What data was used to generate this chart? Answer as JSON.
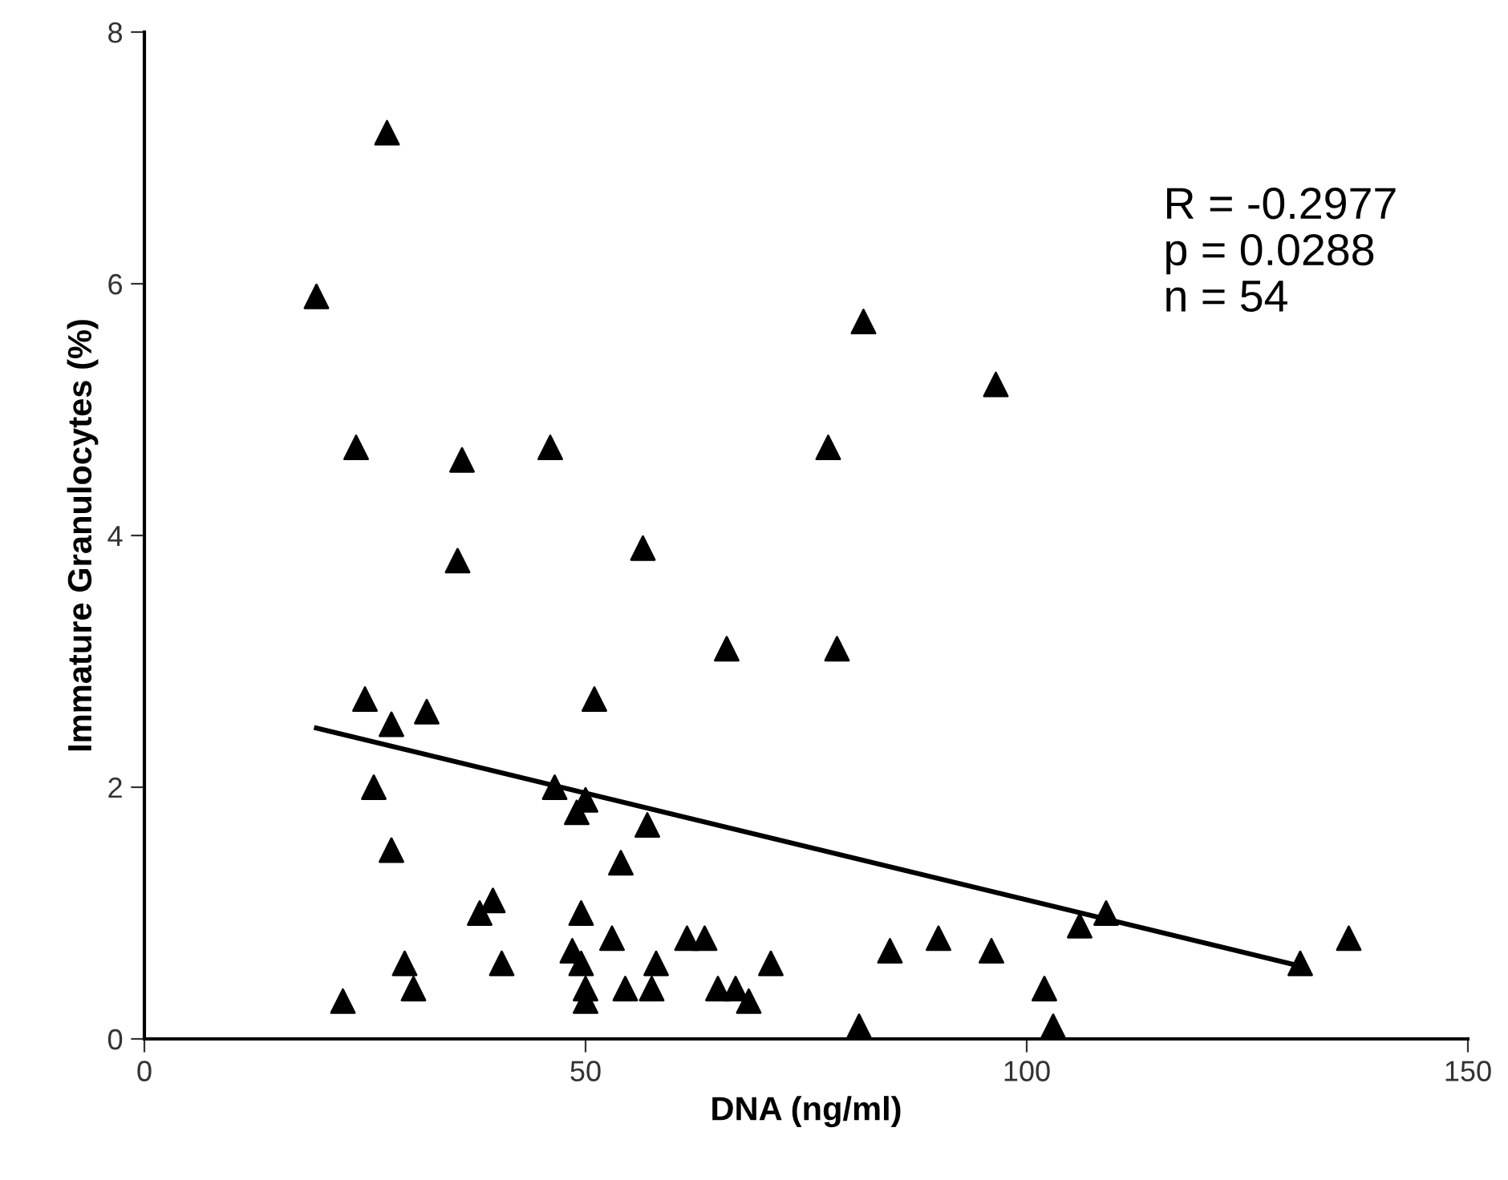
{
  "chart_data": {
    "type": "scatter",
    "xlabel": "DNA (ng/ml)",
    "ylabel": "Immature Granulocytes (%)",
    "xlim": [
      0,
      150
    ],
    "xticks": [
      0,
      50,
      100,
      150
    ],
    "ylim": [
      0,
      8
    ],
    "yticks": [
      0,
      2,
      4,
      6,
      8
    ],
    "grid": false,
    "legend": false,
    "series": [
      {
        "color": "#000000",
        "marker": "triangle",
        "x": [
          19.5,
          22.5,
          24,
          25,
          26,
          27.5,
          28,
          28,
          29.5,
          30.5,
          32,
          35.5,
          36,
          38,
          39.5,
          40.5,
          46,
          46.5,
          48.5,
          49,
          49.5,
          49.5,
          50,
          50,
          50,
          51,
          53,
          54,
          54.5,
          56.5,
          57,
          57.5,
          58,
          61.5,
          63.5,
          65,
          66,
          67,
          68.5,
          71,
          77.5,
          78.5,
          81,
          81.5,
          84.5,
          90,
          96,
          96.5,
          102,
          103,
          106,
          109,
          131,
          136.5
        ],
        "values": [
          5.9,
          0.3,
          4.7,
          2.7,
          2.0,
          7.2,
          2.5,
          1.5,
          0.6,
          0.4,
          2.6,
          3.8,
          4.6,
          1.0,
          1.1,
          0.6,
          4.7,
          2.0,
          0.7,
          1.8,
          1.0,
          0.6,
          1.9,
          0.4,
          0.3,
          2.7,
          0.8,
          1.4,
          0.4,
          3.9,
          1.7,
          0.4,
          0.6,
          0.8,
          0.8,
          0.4,
          3.1,
          0.4,
          0.3,
          0.6,
          4.7,
          3.1,
          0.1,
          5.7,
          0.7,
          0.8,
          0.7,
          5.2,
          0.4,
          0.1,
          0.9,
          1.0,
          0.6,
          0.8
        ]
      },
      {
        "type": "line",
        "color": "#000000",
        "marker": "none",
        "line_style": "solid",
        "x": [
          19.5,
          131.5
        ],
        "values": [
          2.47,
          0.57
        ]
      }
    ],
    "annotations": [
      "R = -0.2977\np = 0.0288\nn = 54"
    ]
  }
}
